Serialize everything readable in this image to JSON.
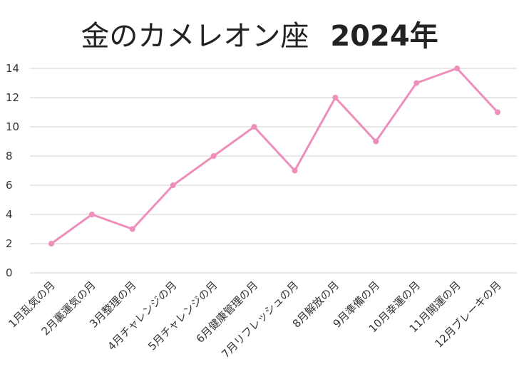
{
  "chart_data": {
    "type": "line",
    "title": "金のカメレオン座",
    "subtitle": "2024年",
    "categories": [
      "1月乱気の月",
      "2月裏運気の月",
      "3月整理の月",
      "4月チャレンジの月",
      "5月チャレンジの月",
      "6月健康管理の月",
      "7月リフレッシュの月",
      "8月解放の月",
      "9月準備の月",
      "10月幸運の月",
      "11月開運の月",
      "12月ブレーキの月"
    ],
    "values": [
      2,
      4,
      3,
      6,
      8,
      10,
      7,
      12,
      9,
      13,
      14,
      11
    ],
    "ylim": [
      0,
      14
    ],
    "yticks": [
      0,
      2,
      4,
      6,
      8,
      10,
      12,
      14
    ],
    "grid": true,
    "line_color": "#ee8fbb"
  }
}
